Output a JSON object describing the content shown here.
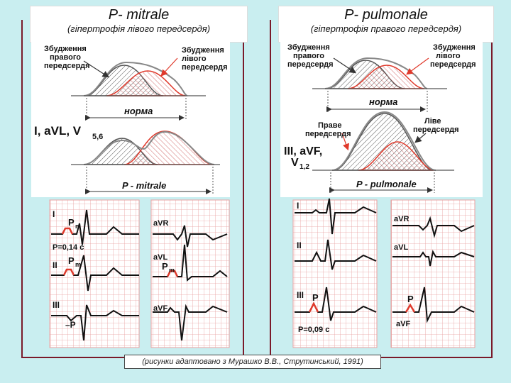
{
  "left": {
    "title": "P- mitrale",
    "subtitle": "(гіпертрофія лівого передсердя)",
    "label_right_atrium": [
      "Збудження",
      "правого",
      "передсердя"
    ],
    "label_left_atrium": [
      "Збудження",
      "лівого",
      "передсердя"
    ],
    "norma": "норма",
    "leads_main": "I, aVL, V",
    "leads_sub": "5,6",
    "p_label": "P - mitrale",
    "ecg": {
      "lead_I": "I",
      "pm1": "P",
      "pm1_sub": "m",
      "duration": "P=0,14 с",
      "lead_II": "II",
      "pm2": "P",
      "pm2_sub": "m",
      "lead_III": "III",
      "neg_p": "–P",
      "aVR": "aVR",
      "aVL": "aVL",
      "pm3": "P",
      "pm3_sub": "m",
      "aVF": "aVF"
    }
  },
  "right": {
    "title": "P- pulmonale",
    "subtitle": "(гіпертрофія правого передсердя)",
    "label_right_atrium": [
      "Збудження",
      "правого",
      "передсердя"
    ],
    "label_left_atrium": [
      "Збудження",
      "лівого",
      "передсердя"
    ],
    "norma": "норма",
    "right_atrium": [
      "Праве",
      "передсердя"
    ],
    "left_atrium": [
      "Ліве",
      "передсердя"
    ],
    "leads_main_1": "III, aVF,",
    "leads_main_2": "V",
    "leads_sub": "1,2",
    "p_label": "P - pulmonale",
    "ecg": {
      "lead_I": "I",
      "lead_II": "II",
      "lead_III": "III",
      "p": "P",
      "duration": "P=0,09 с",
      "aVR": "aVR",
      "aVL": "aVL",
      "p2": "P",
      "aVF": "aVF"
    }
  },
  "caption": "(рисунки адаптовано з Мурашко В.В., Струтинський, 1991)",
  "colors": {
    "frame": "#7a1a2a",
    "bg": "#c9eef0",
    "grid": "#e8a0a0",
    "accent": "#e0392b"
  }
}
